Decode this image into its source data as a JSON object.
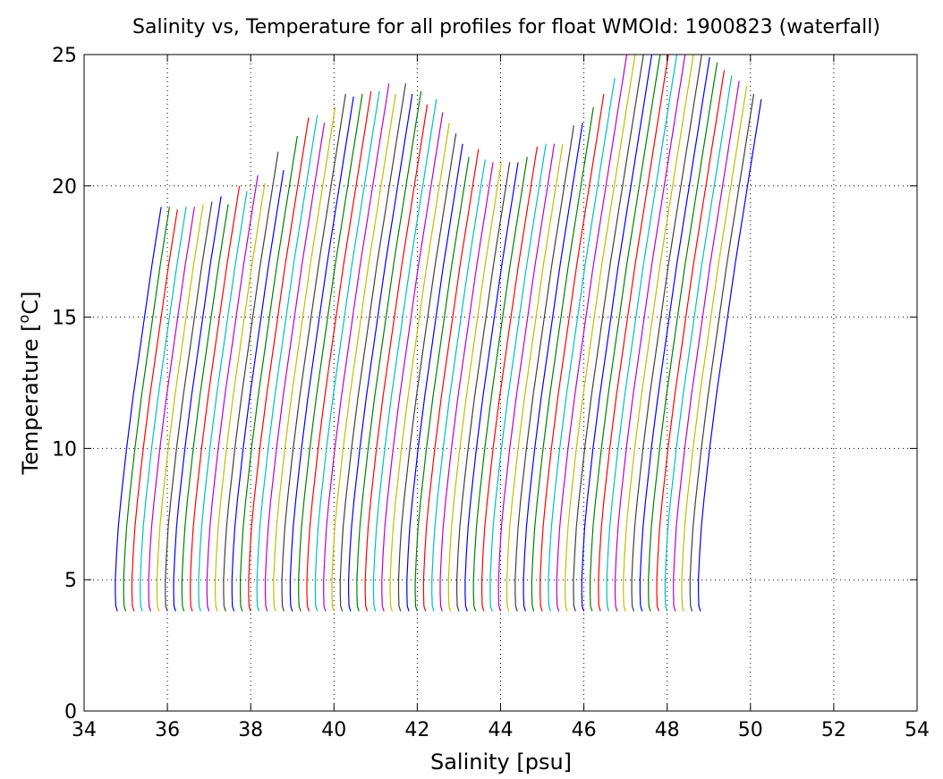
{
  "chart_data": {
    "type": "line",
    "title": "Salinity vs, Temperature for all profiles for float WMOId: 1900823 (waterfall)",
    "xlabel": "Salinity [psu]",
    "ylabel_main": "Temperature [",
    "ylabel_sup": "o",
    "ylabel_end": "C]",
    "xlim": [
      34,
      54
    ],
    "ylim": [
      0,
      25
    ],
    "xticks": [
      "34",
      "36",
      "38",
      "40",
      "42",
      "44",
      "46",
      "48",
      "50",
      "52",
      "54"
    ],
    "yticks": [
      "0",
      "5",
      "10",
      "15",
      "20",
      "25"
    ],
    "grid": "dotted",
    "series_colors": [
      "#0000ff",
      "#008000",
      "#ff0000",
      "#00bfbf",
      "#bf00bf",
      "#bfbf00",
      "#404040"
    ],
    "profile_template": {
      "t": [
        3.8,
        4.0,
        4.5,
        5.0,
        6.0,
        7.0,
        8.0,
        9.0,
        10.0,
        11.0,
        12.0,
        13.0,
        14.0,
        15.0,
        16.0,
        17.0,
        18.0,
        19.0,
        20.0,
        21.0,
        22.0,
        23.0,
        24.0,
        25.0
      ],
      "ds": [
        0.0,
        -0.04,
        -0.05,
        -0.05,
        -0.02,
        0.02,
        0.08,
        0.15,
        0.22,
        0.3,
        0.38,
        0.47,
        0.56,
        0.65,
        0.74,
        0.83,
        0.93,
        1.03,
        1.13,
        1.23,
        1.33,
        1.43,
        1.53,
        1.63
      ]
    },
    "profiles": [
      {
        "s0": 34.8,
        "tmax": 19.2
      },
      {
        "s0": 35.0,
        "tmax": 19.2
      },
      {
        "s0": 35.2,
        "tmax": 19.1
      },
      {
        "s0": 35.4,
        "tmax": 19.2
      },
      {
        "s0": 35.6,
        "tmax": 19.2
      },
      {
        "s0": 35.8,
        "tmax": 19.3
      },
      {
        "s0": 36.0,
        "tmax": 19.4
      },
      {
        "s0": 36.2,
        "tmax": 19.6
      },
      {
        "s0": 36.4,
        "tmax": 19.3
      },
      {
        "s0": 36.6,
        "tmax": 20.0
      },
      {
        "s0": 36.8,
        "tmax": 19.8
      },
      {
        "s0": 37.0,
        "tmax": 20.4
      },
      {
        "s0": 37.2,
        "tmax": 20.1
      },
      {
        "s0": 37.4,
        "tmax": 21.3
      },
      {
        "s0": 37.6,
        "tmax": 20.6
      },
      {
        "s0": 37.8,
        "tmax": 21.9
      },
      {
        "s0": 38.0,
        "tmax": 22.6
      },
      {
        "s0": 38.2,
        "tmax": 22.7
      },
      {
        "s0": 38.4,
        "tmax": 22.4
      },
      {
        "s0": 38.6,
        "tmax": 23.0
      },
      {
        "s0": 38.8,
        "tmax": 23.5
      },
      {
        "s0": 39.0,
        "tmax": 23.4
      },
      {
        "s0": 39.2,
        "tmax": 23.5
      },
      {
        "s0": 39.4,
        "tmax": 23.6
      },
      {
        "s0": 39.6,
        "tmax": 23.6
      },
      {
        "s0": 39.8,
        "tmax": 23.9
      },
      {
        "s0": 40.0,
        "tmax": 23.5
      },
      {
        "s0": 40.2,
        "tmax": 23.9
      },
      {
        "s0": 40.4,
        "tmax": 23.5
      },
      {
        "s0": 40.6,
        "tmax": 23.6
      },
      {
        "s0": 40.8,
        "tmax": 23.1
      },
      {
        "s0": 41.0,
        "tmax": 23.3
      },
      {
        "s0": 41.2,
        "tmax": 22.8
      },
      {
        "s0": 41.4,
        "tmax": 22.4
      },
      {
        "s0": 41.6,
        "tmax": 22.0
      },
      {
        "s0": 41.8,
        "tmax": 21.6
      },
      {
        "s0": 42.0,
        "tmax": 21.1
      },
      {
        "s0": 42.2,
        "tmax": 21.4
      },
      {
        "s0": 42.4,
        "tmax": 21.0
      },
      {
        "s0": 42.6,
        "tmax": 20.9
      },
      {
        "s0": 42.8,
        "tmax": 20.9
      },
      {
        "s0": 43.0,
        "tmax": 20.9
      },
      {
        "s0": 43.2,
        "tmax": 20.9
      },
      {
        "s0": 43.4,
        "tmax": 21.1
      },
      {
        "s0": 43.6,
        "tmax": 21.5
      },
      {
        "s0": 43.8,
        "tmax": 21.6
      },
      {
        "s0": 44.0,
        "tmax": 21.6
      },
      {
        "s0": 44.2,
        "tmax": 21.6
      },
      {
        "s0": 44.4,
        "tmax": 22.3
      },
      {
        "s0": 44.6,
        "tmax": 22.4
      },
      {
        "s0": 44.8,
        "tmax": 23.0
      },
      {
        "s0": 45.0,
        "tmax": 23.5
      },
      {
        "s0": 45.2,
        "tmax": 24.1
      },
      {
        "s0": 45.4,
        "tmax": 25.0
      },
      {
        "s0": 45.6,
        "tmax": 25.0
      },
      {
        "s0": 45.8,
        "tmax": 25.0
      },
      {
        "s0": 46.0,
        "tmax": 25.0
      },
      {
        "s0": 46.2,
        "tmax": 25.0
      },
      {
        "s0": 46.4,
        "tmax": 25.0
      },
      {
        "s0": 46.6,
        "tmax": 25.0
      },
      {
        "s0": 46.8,
        "tmax": 25.0
      },
      {
        "s0": 47.0,
        "tmax": 25.0
      },
      {
        "s0": 47.2,
        "tmax": 25.0
      },
      {
        "s0": 47.4,
        "tmax": 24.9
      },
      {
        "s0": 47.6,
        "tmax": 24.7
      },
      {
        "s0": 47.8,
        "tmax": 24.4
      },
      {
        "s0": 48.0,
        "tmax": 24.2
      },
      {
        "s0": 48.2,
        "tmax": 24.0
      },
      {
        "s0": 48.4,
        "tmax": 23.8
      },
      {
        "s0": 48.6,
        "tmax": 23.5
      },
      {
        "s0": 48.8,
        "tmax": 23.3
      }
    ]
  }
}
